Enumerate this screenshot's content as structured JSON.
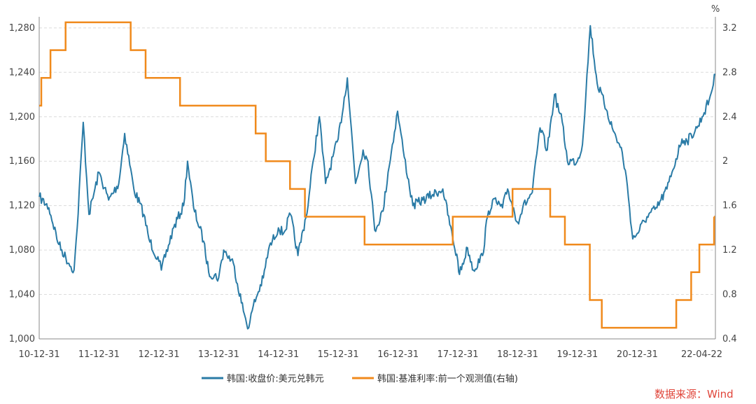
{
  "chart_data": {
    "type": "line",
    "left_axis": {
      "ylim": [
        1000,
        1290
      ],
      "ticks": [
        "1,000",
        "1,040",
        "1,080",
        "1,120",
        "1,160",
        "1,200",
        "1,240",
        "1,280"
      ]
    },
    "right_axis": {
      "unit": "%",
      "ylim": [
        0.4,
        3.3
      ],
      "ticks": [
        "0.4",
        "0.8",
        "1.2",
        "1.6",
        "2",
        "2.4",
        "2.8",
        "3.2"
      ]
    },
    "x_ticks": [
      "10-12-31",
      "11-12-31",
      "12-12-31",
      "13-12-31",
      "14-12-31",
      "15-12-31",
      "16-12-31",
      "17-12-31",
      "18-12-31",
      "19-12-31",
      "20-12-31",
      "22-04-22"
    ],
    "grid": "horizontal-dashed",
    "legend_position": "bottom-center",
    "colors": {
      "fx": "#2a7ba6",
      "rate": "#f08a1c"
    },
    "series": [
      {
        "name": "韩国:收盘价:美元兑韩元",
        "axis": "left",
        "x": [
          "2010-12-31",
          "2011-02-28",
          "2011-04-30",
          "2011-06-30",
          "2011-08-01",
          "2011-08-20",
          "2011-09-26",
          "2011-10-31",
          "2011-12-31",
          "2012-02-28",
          "2012-04-30",
          "2012-06-05",
          "2012-07-31",
          "2012-09-30",
          "2012-10-31",
          "2012-12-31",
          "2013-01-15",
          "2013-03-31",
          "2013-05-31",
          "2013-06-24",
          "2013-07-31",
          "2013-09-30",
          "2013-10-31",
          "2013-12-31",
          "2014-01-31",
          "2014-03-31",
          "2014-05-31",
          "2014-07-03",
          "2014-07-31",
          "2014-09-30",
          "2014-10-31",
          "2014-12-31",
          "2015-01-31",
          "2015-03-15",
          "2015-04-29",
          "2015-06-30",
          "2015-07-31",
          "2015-09-07",
          "2015-10-15",
          "2015-12-31",
          "2016-02-25",
          "2016-04-15",
          "2016-05-31",
          "2016-06-30",
          "2016-08-10",
          "2016-09-30",
          "2016-10-31",
          "2016-12-28",
          "2017-01-31",
          "2017-03-31",
          "2017-05-31",
          "2017-07-31",
          "2017-09-30",
          "2017-11-30",
          "2017-12-31",
          "2018-01-10",
          "2018-02-28",
          "2018-04-05",
          "2018-05-31",
          "2018-06-30",
          "2018-07-31",
          "2018-09-30",
          "2018-10-31",
          "2018-12-31",
          "2019-01-31",
          "2019-03-31",
          "2019-05-17",
          "2019-06-30",
          "2019-08-13",
          "2019-09-30",
          "2019-10-31",
          "2019-12-31",
          "2020-01-31",
          "2020-03-19",
          "2020-04-30",
          "2020-06-30",
          "2020-07-31",
          "2020-09-30",
          "2020-10-31",
          "2020-12-03",
          "2020-12-31",
          "2021-02-28",
          "2021-04-30",
          "2021-06-30",
          "2021-07-31",
          "2021-09-30",
          "2021-10-31",
          "2021-12-31",
          "2022-01-31",
          "2022-03-15",
          "2022-04-22"
        ],
        "values": [
          1128,
          1118,
          1085,
          1068,
          1062,
          1100,
          1195,
          1112,
          1150,
          1125,
          1140,
          1185,
          1135,
          1112,
          1090,
          1070,
          1062,
          1100,
          1120,
          1160,
          1118,
          1088,
          1060,
          1055,
          1080,
          1068,
          1025,
          1010,
          1030,
          1055,
          1080,
          1100,
          1095,
          1112,
          1075,
          1120,
          1160,
          1200,
          1140,
          1180,
          1235,
          1140,
          1170,
          1160,
          1098,
          1115,
          1150,
          1205,
          1170,
          1120,
          1125,
          1130,
          1135,
          1090,
          1070,
          1058,
          1082,
          1062,
          1075,
          1110,
          1125,
          1118,
          1135,
          1105,
          1118,
          1132,
          1190,
          1170,
          1220,
          1195,
          1160,
          1160,
          1175,
          1282,
          1230,
          1205,
          1190,
          1168,
          1138,
          1090,
          1095,
          1110,
          1118,
          1135,
          1150,
          1180,
          1178,
          1190,
          1200,
          1215,
          1238
        ]
      },
      {
        "name": "韩国:基准利率:前一个观测值(右轴)",
        "axis": "right",
        "x": [
          "2010-12-31",
          "2011-01-13",
          "2011-03-10",
          "2011-06-10",
          "2012-07-12",
          "2012-10-11",
          "2013-05-09",
          "2014-08-14",
          "2014-10-15",
          "2015-03-12",
          "2015-06-11",
          "2016-06-09",
          "2017-11-30",
          "2018-11-30",
          "2019-07-18",
          "2019-10-16",
          "2020-03-16",
          "2020-05-28",
          "2021-08-26",
          "2021-11-25",
          "2022-01-14",
          "2022-04-14"
        ],
        "values": [
          2.5,
          2.75,
          3.0,
          3.25,
          3.0,
          2.75,
          2.5,
          2.25,
          2.0,
          1.75,
          1.5,
          1.25,
          1.5,
          1.75,
          1.5,
          1.25,
          0.75,
          0.5,
          0.75,
          1.0,
          1.25,
          1.5
        ]
      }
    ]
  },
  "source_label": "数据来源：Wind"
}
